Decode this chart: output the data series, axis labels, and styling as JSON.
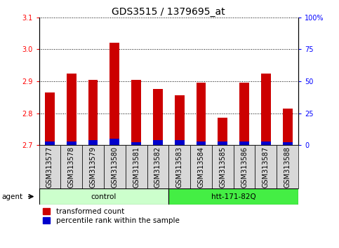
{
  "title": "GDS3515 / 1379695_at",
  "samples": [
    "GSM313577",
    "GSM313578",
    "GSM313579",
    "GSM313580",
    "GSM313581",
    "GSM313582",
    "GSM313583",
    "GSM313584",
    "GSM313585",
    "GSM313586",
    "GSM313587",
    "GSM313588"
  ],
  "red_values": [
    2.865,
    2.925,
    2.905,
    3.02,
    2.905,
    2.875,
    2.855,
    2.895,
    2.785,
    2.895,
    2.925,
    2.815
  ],
  "blue_values": [
    0.012,
    0.012,
    0.015,
    0.02,
    0.01,
    0.015,
    0.015,
    0.012,
    0.012,
    0.012,
    0.012,
    0.01
  ],
  "baseline": 2.7,
  "ylim_min": 2.7,
  "ylim_max": 3.1,
  "yticks_left": [
    2.7,
    2.8,
    2.9,
    3.0,
    3.1
  ],
  "yticks_right_vals": [
    0,
    25,
    50,
    75,
    100
  ],
  "yticks_right_labels": [
    "0",
    "25",
    "50",
    "75",
    "100%"
  ],
  "groups": [
    {
      "label": "control",
      "start": 0,
      "end": 6,
      "color": "#ccffcc"
    },
    {
      "label": "htt-171-82Q",
      "start": 6,
      "end": 12,
      "color": "#44ee44"
    }
  ],
  "agent_label": "agent",
  "red_color": "#cc0000",
  "blue_color": "#0000cc",
  "legend_red": "transformed count",
  "legend_blue": "percentile rank within the sample",
  "title_fontsize": 10,
  "tick_fontsize": 7,
  "label_fontsize": 7.5,
  "bar_width": 0.45
}
